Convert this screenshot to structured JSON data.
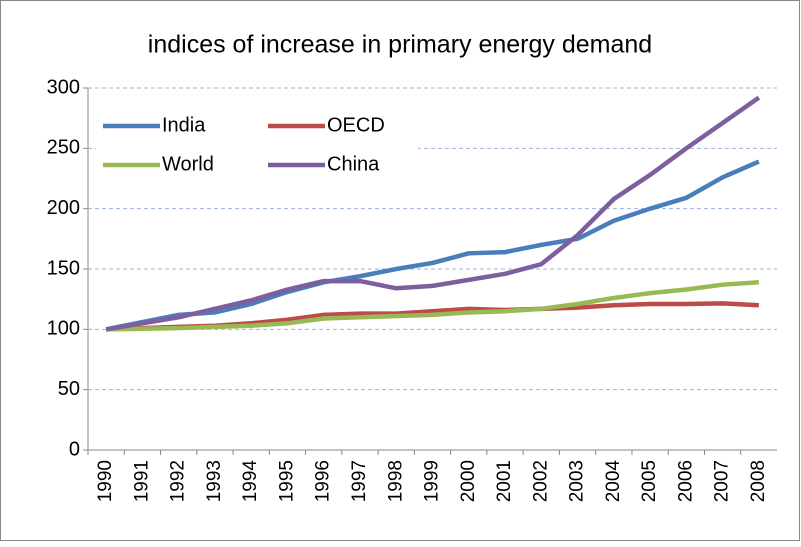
{
  "chart_data": {
    "type": "line",
    "title": "indices of increase in primary energy demand",
    "categories": [
      "1990",
      "1991",
      "1992",
      "1993",
      "1994",
      "1995",
      "1996",
      "1997",
      "1998",
      "1999",
      "2000",
      "2001",
      "2002",
      "2003",
      "2004",
      "2005",
      "2006",
      "2007",
      "2008"
    ],
    "series": [
      {
        "name": "India",
        "color": "#4a7ebb",
        "values": [
          100,
          106,
          112,
          114,
          121,
          131,
          139,
          144,
          150,
          155,
          163,
          164,
          170,
          175,
          190,
          200,
          209,
          226,
          239
        ]
      },
      {
        "name": "OECD",
        "color": "#be4b48",
        "values": [
          100,
          101,
          102,
          103,
          105,
          108,
          112,
          113,
          113,
          115,
          117,
          116,
          117,
          118,
          120,
          121,
          121,
          121.5,
          120
        ]
      },
      {
        "name": "World",
        "color": "#98b954",
        "values": [
          100,
          100.5,
          101,
          102,
          103,
          105,
          109,
          110,
          111,
          112,
          114,
          115,
          117,
          121,
          126,
          130,
          133,
          137,
          139
        ]
      },
      {
        "name": "China",
        "color": "#7d5fa0",
        "values": [
          100,
          105,
          110,
          117,
          124,
          133,
          140,
          140,
          134,
          136,
          141,
          146,
          154,
          178,
          208,
          228,
          250,
          271,
          292
        ]
      }
    ],
    "ylim": [
      0,
      300
    ],
    "yticks": [
      0,
      50,
      100,
      150,
      200,
      250,
      300
    ],
    "grid": true,
    "legend": "upper left"
  }
}
